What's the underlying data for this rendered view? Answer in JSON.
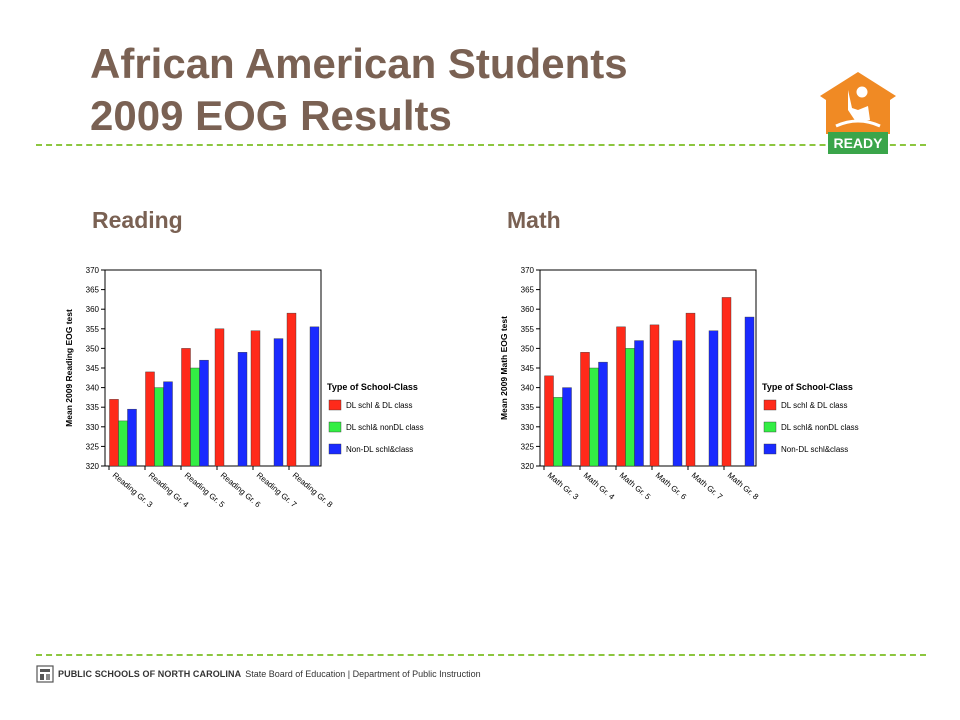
{
  "slide": {
    "title_line1": "African American Students",
    "title_line2": "2009 EOG Results",
    "reading_label": "Reading",
    "math_label": "Math",
    "logo_text": "READY"
  },
  "footer": {
    "org": "PUBLIC SCHOOLS OF NORTH CAROLINA",
    "rest": "State Board of Education | Department of Public Instruction"
  },
  "colors": {
    "title": "#7a6153",
    "divider": "#8cc63f",
    "red": "#ff2a1a",
    "green": "#33ee44",
    "blue": "#1a2aff",
    "logo_orange": "#f08a24",
    "logo_green": "#3aa54a"
  },
  "chart_data": [
    {
      "id": "reading",
      "type": "bar",
      "ylabel": "Mean 2009 Reading EOG test",
      "ylim": [
        320,
        370
      ],
      "yticks": [
        320,
        325,
        330,
        335,
        340,
        345,
        350,
        355,
        360,
        365,
        370
      ],
      "categories": [
        "Reading Gr. 3",
        "Reading Gr. 4",
        "Reading Gr. 5",
        "Reading Gr. 6",
        "Reading Gr. 7",
        "Reading Gr. 8"
      ],
      "legend_title": "Type of School-Class",
      "series": [
        {
          "name": "DL schl & DL class",
          "color": "#ff2a1a",
          "values": [
            337,
            344,
            350,
            355,
            354.5,
            359
          ]
        },
        {
          "name": "DL schl& nonDL class",
          "color": "#33ee44",
          "values": [
            331.5,
            340,
            345,
            null,
            null,
            null
          ]
        },
        {
          "name": "Non-DL schl&class",
          "color": "#1a2aff",
          "values": [
            334.5,
            341.5,
            347,
            349,
            352.5,
            355.5
          ]
        }
      ]
    },
    {
      "id": "math",
      "type": "bar",
      "ylabel": "Mean 2009 Math EOG test",
      "ylim": [
        320,
        370
      ],
      "yticks": [
        320,
        325,
        330,
        335,
        340,
        345,
        350,
        355,
        360,
        365,
        370
      ],
      "categories": [
        "Math Gr. 3",
        "Math Gr. 4",
        "Math Gr. 5",
        "Math Gr. 6",
        "Math Gr. 7",
        "Math Gr. 8"
      ],
      "legend_title": "Type of School-Class",
      "series": [
        {
          "name": "DL schl & DL class",
          "color": "#ff2a1a",
          "values": [
            343,
            349,
            355.5,
            356,
            359,
            363
          ]
        },
        {
          "name": "DL schl& nonDL class",
          "color": "#33ee44",
          "values": [
            337.5,
            345,
            350,
            null,
            null,
            null
          ]
        },
        {
          "name": "Non-DL schl&class",
          "color": "#1a2aff",
          "values": [
            340,
            346.5,
            352,
            352,
            354.5,
            358
          ]
        }
      ]
    }
  ]
}
